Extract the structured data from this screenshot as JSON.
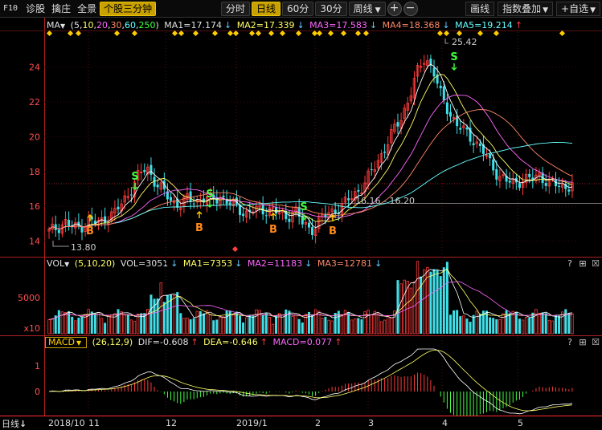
{
  "toolbar": {
    "f10": "F10",
    "items": [
      "诊股",
      "擒庄",
      "全景"
    ],
    "active_item": "个股三分钟",
    "periods": [
      "分时",
      "日线",
      "60分",
      "30分",
      "周线"
    ],
    "active_period": "日线",
    "period_dropdown_icon": "chevron-down-icon",
    "plus_label": "+",
    "minus_label": "−",
    "curve_label": "画线",
    "overlay_label": "指数叠加",
    "watch_label": "+自选"
  },
  "ma_header": {
    "name": "MA",
    "params_open": "(",
    "p1": "5",
    "p2": "10",
    "p3": "20",
    "p4": "30",
    "p5": "60",
    "p6": "250",
    "params_close": ")",
    "ma1": "MA1=17.174",
    "ma2": "MA2=17.339",
    "ma3": "MA3=17.583",
    "ma4": "MA4=18.368",
    "ma5": "MA5=19.214",
    "arrow_down": "↓",
    "arrow_up": "↑"
  },
  "vol_header": {
    "name": "VOL",
    "params": "(5,10,20)",
    "vol": "VOL=3051",
    "ma1": "MA1=7353",
    "ma2": "MA2=11183",
    "ma3": "MA3=12781",
    "arrow_down": "↓"
  },
  "macd_header": {
    "name": "MACD",
    "params": "(26,12,9)",
    "dif": "DIF=-0.608",
    "dea": "DEA=-0.646",
    "macd": "MACD=0.077",
    "arrow_up": "↑"
  },
  "panel_icons": {
    "help": "?",
    "expand": "⊞",
    "close": "☒"
  },
  "price_axis": [
    "24",
    "22",
    "20",
    "18",
    "16",
    "14"
  ],
  "vol_axis": [
    "5000",
    "x10"
  ],
  "macd_axis": [
    "1",
    "0"
  ],
  "annotations": {
    "high": "25.42",
    "low": "13.80",
    "range": "16.16 - 16.20",
    "buy": "B",
    "sell": "S"
  },
  "bottom": {
    "mode_label": "日线",
    "down_icon": "↓",
    "dates": [
      "2018/10",
      "11",
      "12",
      "2019/1",
      "2",
      "3",
      "4",
      "5"
    ]
  },
  "colors": {
    "up": "#ff3b3b",
    "down": "#3fe0e8",
    "ma5": "#ffffff",
    "ma10": "#ffff66",
    "ma20": "#ff66ff",
    "ma30": "#ff8866",
    "ma60": "#66ffff",
    "accent": "#c8a000"
  },
  "chart_data": {
    "type": "candlestick",
    "series": [
      {
        "name": "MA1",
        "value": 17.174
      },
      {
        "name": "MA2",
        "value": 17.339
      },
      {
        "name": "MA3",
        "value": 17.583
      },
      {
        "name": "MA4",
        "value": 18.368
      },
      {
        "name": "MA5",
        "value": 19.214
      }
    ],
    "price_range": [
      13.2,
      26.0
    ],
    "high": 25.42,
    "low": 13.8,
    "close_path": [
      14.5,
      14.8,
      15.1,
      14.7,
      14.9,
      15.2,
      15.0,
      15.4,
      15.6,
      16.2,
      17.0,
      17.8,
      18.2,
      17.4,
      16.8,
      16.3,
      16.1,
      16.4,
      16.3,
      16.5,
      16.3,
      16.6,
      16.2,
      15.9,
      15.6,
      15.8,
      15.7,
      15.9,
      15.6,
      15.3,
      15.9,
      15.0,
      14.6,
      15.2,
      15.5,
      15.8,
      16.1,
      16.5,
      17.0,
      17.6,
      18.4,
      19.3,
      20.2,
      21.0,
      22.2,
      23.6,
      24.6,
      23.8,
      22.2,
      21.4,
      20.6,
      20.2,
      19.8,
      19.2,
      18.4,
      17.8,
      17.4,
      17.3,
      17.6,
      17.5,
      17.8,
      17.4,
      17.2,
      17.1,
      17.3
    ]
  }
}
